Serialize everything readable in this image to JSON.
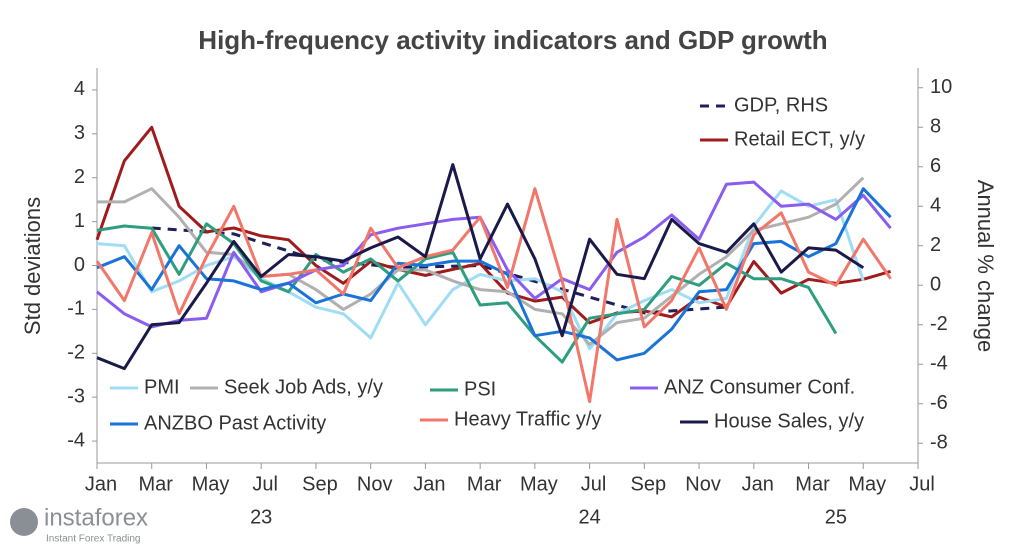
{
  "chart_data": {
    "type": "line",
    "title": "High-frequency activity indicators and GDP growth",
    "y_label": "Std deviations",
    "y2_label": "Annual % change",
    "x": [
      "2023-01",
      "2023-02",
      "2023-03",
      "2023-04",
      "2023-05",
      "2023-06",
      "2023-07",
      "2023-08",
      "2023-09",
      "2023-10",
      "2023-11",
      "2023-12",
      "2024-01",
      "2024-02",
      "2024-03",
      "2024-04",
      "2024-05",
      "2024-06",
      "2024-07",
      "2024-08",
      "2024-09",
      "2024-10",
      "2024-11",
      "2024-12",
      "2025-01",
      "2025-02",
      "2025-03",
      "2025-04",
      "2025-05",
      "2025-06"
    ],
    "xlim": [
      "2023-01",
      "2025-07"
    ],
    "xticks": [
      {
        "value": "2023-01",
        "label": "Jan"
      },
      {
        "value": "2023-03",
        "label": "Mar"
      },
      {
        "value": "2023-05",
        "label": "May"
      },
      {
        "value": "2023-07",
        "label": "Jul"
      },
      {
        "value": "2023-09",
        "label": "Sep"
      },
      {
        "value": "2023-11",
        "label": "Nov"
      },
      {
        "value": "2024-01",
        "label": "Jan"
      },
      {
        "value": "2024-03",
        "label": "Mar"
      },
      {
        "value": "2024-05",
        "label": "May"
      },
      {
        "value": "2024-07",
        "label": "Jul"
      },
      {
        "value": "2024-09",
        "label": "Sep"
      },
      {
        "value": "2024-11",
        "label": "Nov"
      },
      {
        "value": "2025-01",
        "label": "Jan"
      },
      {
        "value": "2025-03",
        "label": "Mar"
      },
      {
        "value": "2025-05",
        "label": "May"
      },
      {
        "value": "2025-07",
        "label": "Jul"
      }
    ],
    "year_labels": [
      {
        "value": "2023-07",
        "label": "23"
      },
      {
        "value": "2024-07",
        "label": "24"
      },
      {
        "value": "2025-04",
        "label": "25"
      }
    ],
    "ylim": [
      -4.5,
      4.5
    ],
    "yticks": [
      -4,
      -3,
      -2,
      -1,
      0,
      1,
      2,
      3,
      4
    ],
    "y2lim": [
      -9,
      11
    ],
    "y2ticks": [
      -8,
      -6,
      -4,
      -2,
      0,
      2,
      4,
      6,
      8,
      10
    ],
    "grid": false,
    "series": [
      {
        "name": "GDP, RHS",
        "color": "#1f1f5c",
        "axis": "y2",
        "dashed": true,
        "x": [
          "2023-03",
          "2023-06",
          "2023-09",
          "2023-12",
          "2024-03",
          "2024-06",
          "2024-09",
          "2024-12"
        ],
        "values": [
          2.9,
          2.6,
          1.3,
          0.9,
          1.0,
          -0.2,
          -1.4,
          -1.1
        ]
      },
      {
        "name": "Retail ECT, y/y",
        "color": "#a01c1c",
        "axis": "y2",
        "values": [
          2.3,
          6.3,
          8.0,
          4.0,
          2.7,
          2.9,
          2.5,
          2.3,
          1.0,
          0.1,
          1.2,
          0.8,
          0.5,
          0.8,
          1.1,
          -0.4,
          -0.8,
          -0.6,
          -1.9,
          -1.4,
          -1.3,
          -1.6,
          -0.6,
          -1.1,
          1.2,
          -0.4,
          0.3,
          0.1,
          0.3,
          0.7
        ]
      },
      {
        "name": "PMI",
        "color": "#9fdcf5",
        "values": [
          0.5,
          0.45,
          -0.6,
          -0.35,
          0.0,
          0.2,
          -0.3,
          -0.6,
          -0.95,
          -1.1,
          -1.65,
          -0.4,
          -1.35,
          -0.55,
          -0.2,
          -0.35,
          -0.3,
          -0.6,
          -1.9,
          -1.1,
          -0.8,
          -0.55,
          -0.85,
          -0.75,
          0.9,
          1.7,
          1.35,
          1.5,
          -0.35,
          null
        ]
      },
      {
        "name": "Seek Job Ads, y/y",
        "color": "#b0b0b0",
        "values": [
          1.45,
          1.45,
          1.75,
          1.1,
          0.3,
          0.25,
          -0.25,
          -0.2,
          -0.55,
          -1.0,
          -0.65,
          -0.1,
          -0.1,
          -0.35,
          -0.55,
          -0.6,
          -1.0,
          -1.1,
          -1.8,
          -1.3,
          -1.2,
          -0.7,
          -0.2,
          0.2,
          0.8,
          0.95,
          1.1,
          1.4,
          2.0,
          null
        ]
      },
      {
        "name": "PSI",
        "color": "#2e9e7e",
        "values": [
          0.8,
          0.9,
          0.85,
          -0.2,
          0.95,
          0.5,
          -0.35,
          -0.6,
          0.25,
          -0.15,
          0.15,
          -0.35,
          0.15,
          0.3,
          -0.9,
          -0.85,
          -1.6,
          -2.2,
          -1.2,
          -1.1,
          -1.0,
          -0.25,
          -0.45,
          0.05,
          -0.3,
          -0.3,
          -0.5,
          -1.55,
          null,
          null
        ]
      },
      {
        "name": "ANZ Consumer Conf.",
        "color": "#8a5cf0",
        "values": [
          -0.6,
          -1.1,
          -1.4,
          -1.25,
          -1.2,
          0.3,
          -0.6,
          -0.4,
          -0.1,
          0.0,
          0.7,
          0.85,
          0.95,
          1.05,
          1.1,
          -0.1,
          -0.75,
          -0.3,
          -0.55,
          0.3,
          0.65,
          1.15,
          0.6,
          1.85,
          1.9,
          1.35,
          1.4,
          1.05,
          1.6,
          0.85
        ]
      },
      {
        "name": "ANZBO Past Activity",
        "color": "#1a73d9",
        "values": [
          -0.05,
          0.2,
          -0.55,
          0.45,
          -0.3,
          -0.35,
          -0.55,
          -0.4,
          -0.85,
          -0.65,
          -0.8,
          0.05,
          0.0,
          0.1,
          0.1,
          -0.2,
          -1.6,
          -1.5,
          -1.65,
          -2.15,
          -2.0,
          -1.45,
          -0.6,
          -0.55,
          0.5,
          0.55,
          0.2,
          0.5,
          1.75,
          1.1
        ]
      },
      {
        "name": "Heavy Traffic y/y",
        "color": "#f2776a",
        "values": [
          0.1,
          -0.8,
          0.75,
          -1.1,
          0.2,
          1.35,
          -0.25,
          -0.2,
          -0.1,
          -0.65,
          0.85,
          -0.05,
          0.2,
          0.35,
          1.1,
          -0.5,
          1.75,
          -0.35,
          -3.1,
          1.05,
          -1.4,
          -0.8,
          0.4,
          -1.0,
          0.7,
          1.2,
          -0.15,
          -0.45,
          0.6,
          -0.3
        ]
      },
      {
        "name": "House Sales, y/y",
        "color": "#1a1a4a",
        "values": [
          -2.1,
          -2.35,
          -1.35,
          -1.3,
          -0.4,
          0.55,
          -0.25,
          0.25,
          0.2,
          0.1,
          0.4,
          0.65,
          0.2,
          2.3,
          0.15,
          1.4,
          0.15,
          -1.6,
          0.6,
          -0.2,
          -0.3,
          1.05,
          0.5,
          0.3,
          0.95,
          -0.15,
          0.4,
          0.35,
          -0.05,
          null
        ]
      }
    ]
  },
  "watermark": {
    "brand": "instaforex",
    "tagline": "Instant Forex Trading"
  }
}
